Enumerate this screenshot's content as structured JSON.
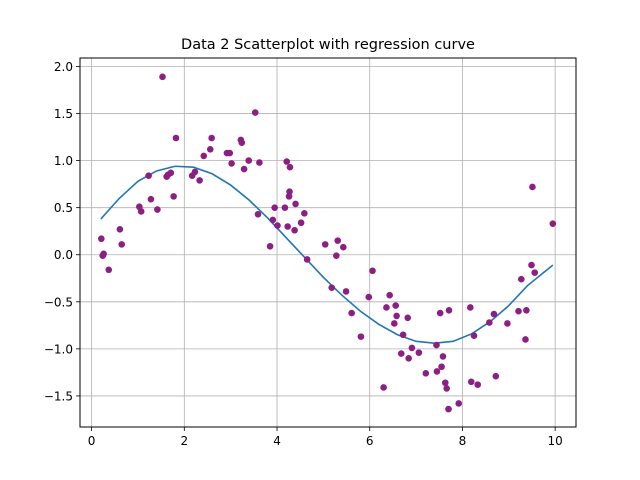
{
  "chart_data": {
    "type": "scatter",
    "title": "Data 2 Scatterplot with regression curve",
    "xlabel": "",
    "ylabel": "",
    "xlim": [
      -0.25,
      10.45
    ],
    "ylim": [
      -1.83,
      2.09
    ],
    "xticks": [
      0,
      2,
      4,
      6,
      8,
      10
    ],
    "xtick_labels": [
      "0",
      "2",
      "4",
      "6",
      "8",
      "10"
    ],
    "yticks": [
      -1.5,
      -1.0,
      -0.5,
      0.0,
      0.5,
      1.0,
      1.5,
      2.0
    ],
    "ytick_labels": [
      "−1.5",
      "−1.0",
      "−0.5",
      "0.0",
      "0.5",
      "1.0",
      "1.5",
      "2.0"
    ],
    "grid": true,
    "colors": {
      "scatter": "#8b1f84",
      "curve": "#1f77b4",
      "grid": "#b0b0b0"
    },
    "series": [
      {
        "kind": "scatter",
        "x": [
          0.21,
          0.24,
          0.26,
          0.37,
          0.61,
          0.65,
          1.03,
          1.07,
          1.23,
          1.28,
          1.42,
          1.53,
          1.62,
          1.65,
          1.71,
          1.77,
          1.82,
          2.17,
          2.23,
          2.33,
          2.42,
          2.56,
          2.59,
          2.92,
          2.98,
          3.02,
          3.22,
          3.24,
          3.29,
          3.39,
          3.53,
          3.59,
          3.62,
          3.85,
          3.91,
          3.95,
          4.01,
          4.17,
          4.21,
          4.23,
          4.26,
          4.27,
          4.28,
          4.38,
          4.4,
          4.52,
          4.59,
          4.65,
          5.04,
          5.18,
          5.28,
          5.31,
          5.43,
          5.49,
          5.61,
          5.81,
          5.98,
          6.06,
          6.3,
          6.36,
          6.43,
          6.53,
          6.56,
          6.58,
          6.68,
          6.72,
          6.82,
          6.84,
          6.91,
          7.06,
          7.21,
          7.44,
          7.45,
          7.52,
          7.55,
          7.58,
          7.63,
          7.66,
          7.7,
          7.71,
          7.92,
          8.17,
          8.19,
          8.25,
          8.33,
          8.58,
          8.68,
          8.72,
          8.97,
          9.21,
          9.27,
          9.36,
          9.38,
          9.49,
          9.51,
          9.56,
          9.95
        ],
        "y": [
          0.17,
          -0.01,
          0.01,
          -0.16,
          0.27,
          0.11,
          0.51,
          0.46,
          0.84,
          0.59,
          0.48,
          1.89,
          0.83,
          0.85,
          0.87,
          0.62,
          1.24,
          0.84,
          0.88,
          0.79,
          1.05,
          1.12,
          1.24,
          1.08,
          1.08,
          0.97,
          1.22,
          1.19,
          0.91,
          1.0,
          1.51,
          0.43,
          0.98,
          0.09,
          0.37,
          0.5,
          0.31,
          0.5,
          0.99,
          0.3,
          0.62,
          0.67,
          0.93,
          0.26,
          0.54,
          0.34,
          0.44,
          -0.05,
          0.11,
          -0.35,
          -0.01,
          0.15,
          0.08,
          -0.39,
          -0.62,
          -0.87,
          -0.45,
          -0.17,
          -1.41,
          -0.56,
          -0.43,
          -0.73,
          -0.54,
          -0.65,
          -1.05,
          -0.85,
          -0.67,
          -1.1,
          -0.99,
          -1.04,
          -1.26,
          -0.96,
          -1.24,
          -0.62,
          -1.19,
          -1.08,
          -1.36,
          -1.42,
          -1.64,
          -0.59,
          -1.58,
          -0.56,
          -1.35,
          -0.86,
          -1.38,
          -0.72,
          -0.63,
          -1.29,
          -0.73,
          -0.6,
          -0.26,
          -0.9,
          -0.59,
          -0.11,
          0.72,
          -0.19,
          0.33
        ]
      },
      {
        "kind": "line",
        "description_free": true,
        "x": [
          0.2,
          0.6,
          1.0,
          1.4,
          1.8,
          2.2,
          2.6,
          3.0,
          3.4,
          3.8,
          4.2,
          4.6,
          5.0,
          5.4,
          5.8,
          6.2,
          6.6,
          7.0,
          7.4,
          7.8,
          8.2,
          8.6,
          9.0,
          9.4,
          9.7,
          9.95
        ],
        "y": [
          0.38,
          0.6,
          0.78,
          0.89,
          0.94,
          0.93,
          0.86,
          0.74,
          0.58,
          0.39,
          0.18,
          -0.03,
          -0.24,
          -0.43,
          -0.6,
          -0.74,
          -0.85,
          -0.92,
          -0.94,
          -0.92,
          -0.84,
          -0.71,
          -0.54,
          -0.33,
          -0.21,
          -0.11
        ]
      }
    ]
  }
}
